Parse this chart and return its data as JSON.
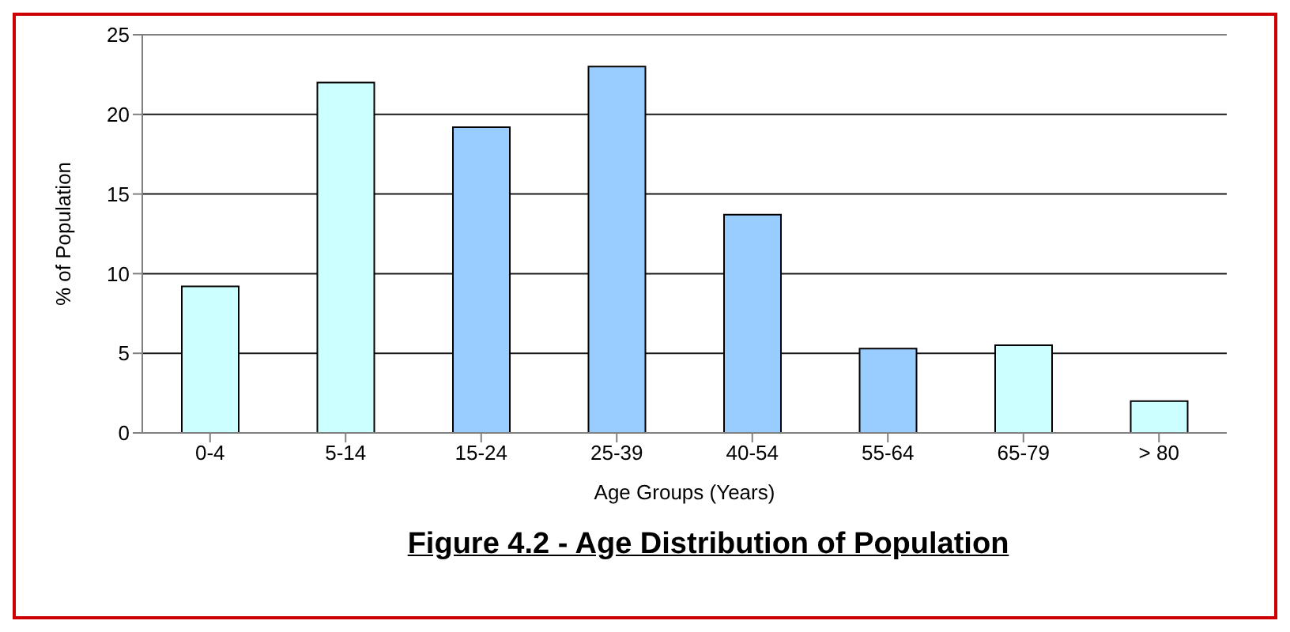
{
  "chart_data": {
    "type": "bar",
    "title": "Figure 4.2 - Age Distribution of Population",
    "xlabel": "Age Groups (Years)",
    "ylabel": "% of Population",
    "categories": [
      "0-4",
      "5-14",
      "15-24",
      "25-39",
      "40-54",
      "55-64",
      "65-79",
      "> 80"
    ],
    "values": [
      9.2,
      22.0,
      19.2,
      23.0,
      13.7,
      5.3,
      5.5,
      2.0
    ],
    "colors": [
      "#ccffff",
      "#ccffff",
      "#99ccff",
      "#99ccff",
      "#99ccff",
      "#99ccff",
      "#ccffff",
      "#ccffff"
    ],
    "ylim": [
      0,
      25
    ],
    "yticks": [
      0,
      5,
      10,
      15,
      20,
      25
    ],
    "grid": "y"
  }
}
